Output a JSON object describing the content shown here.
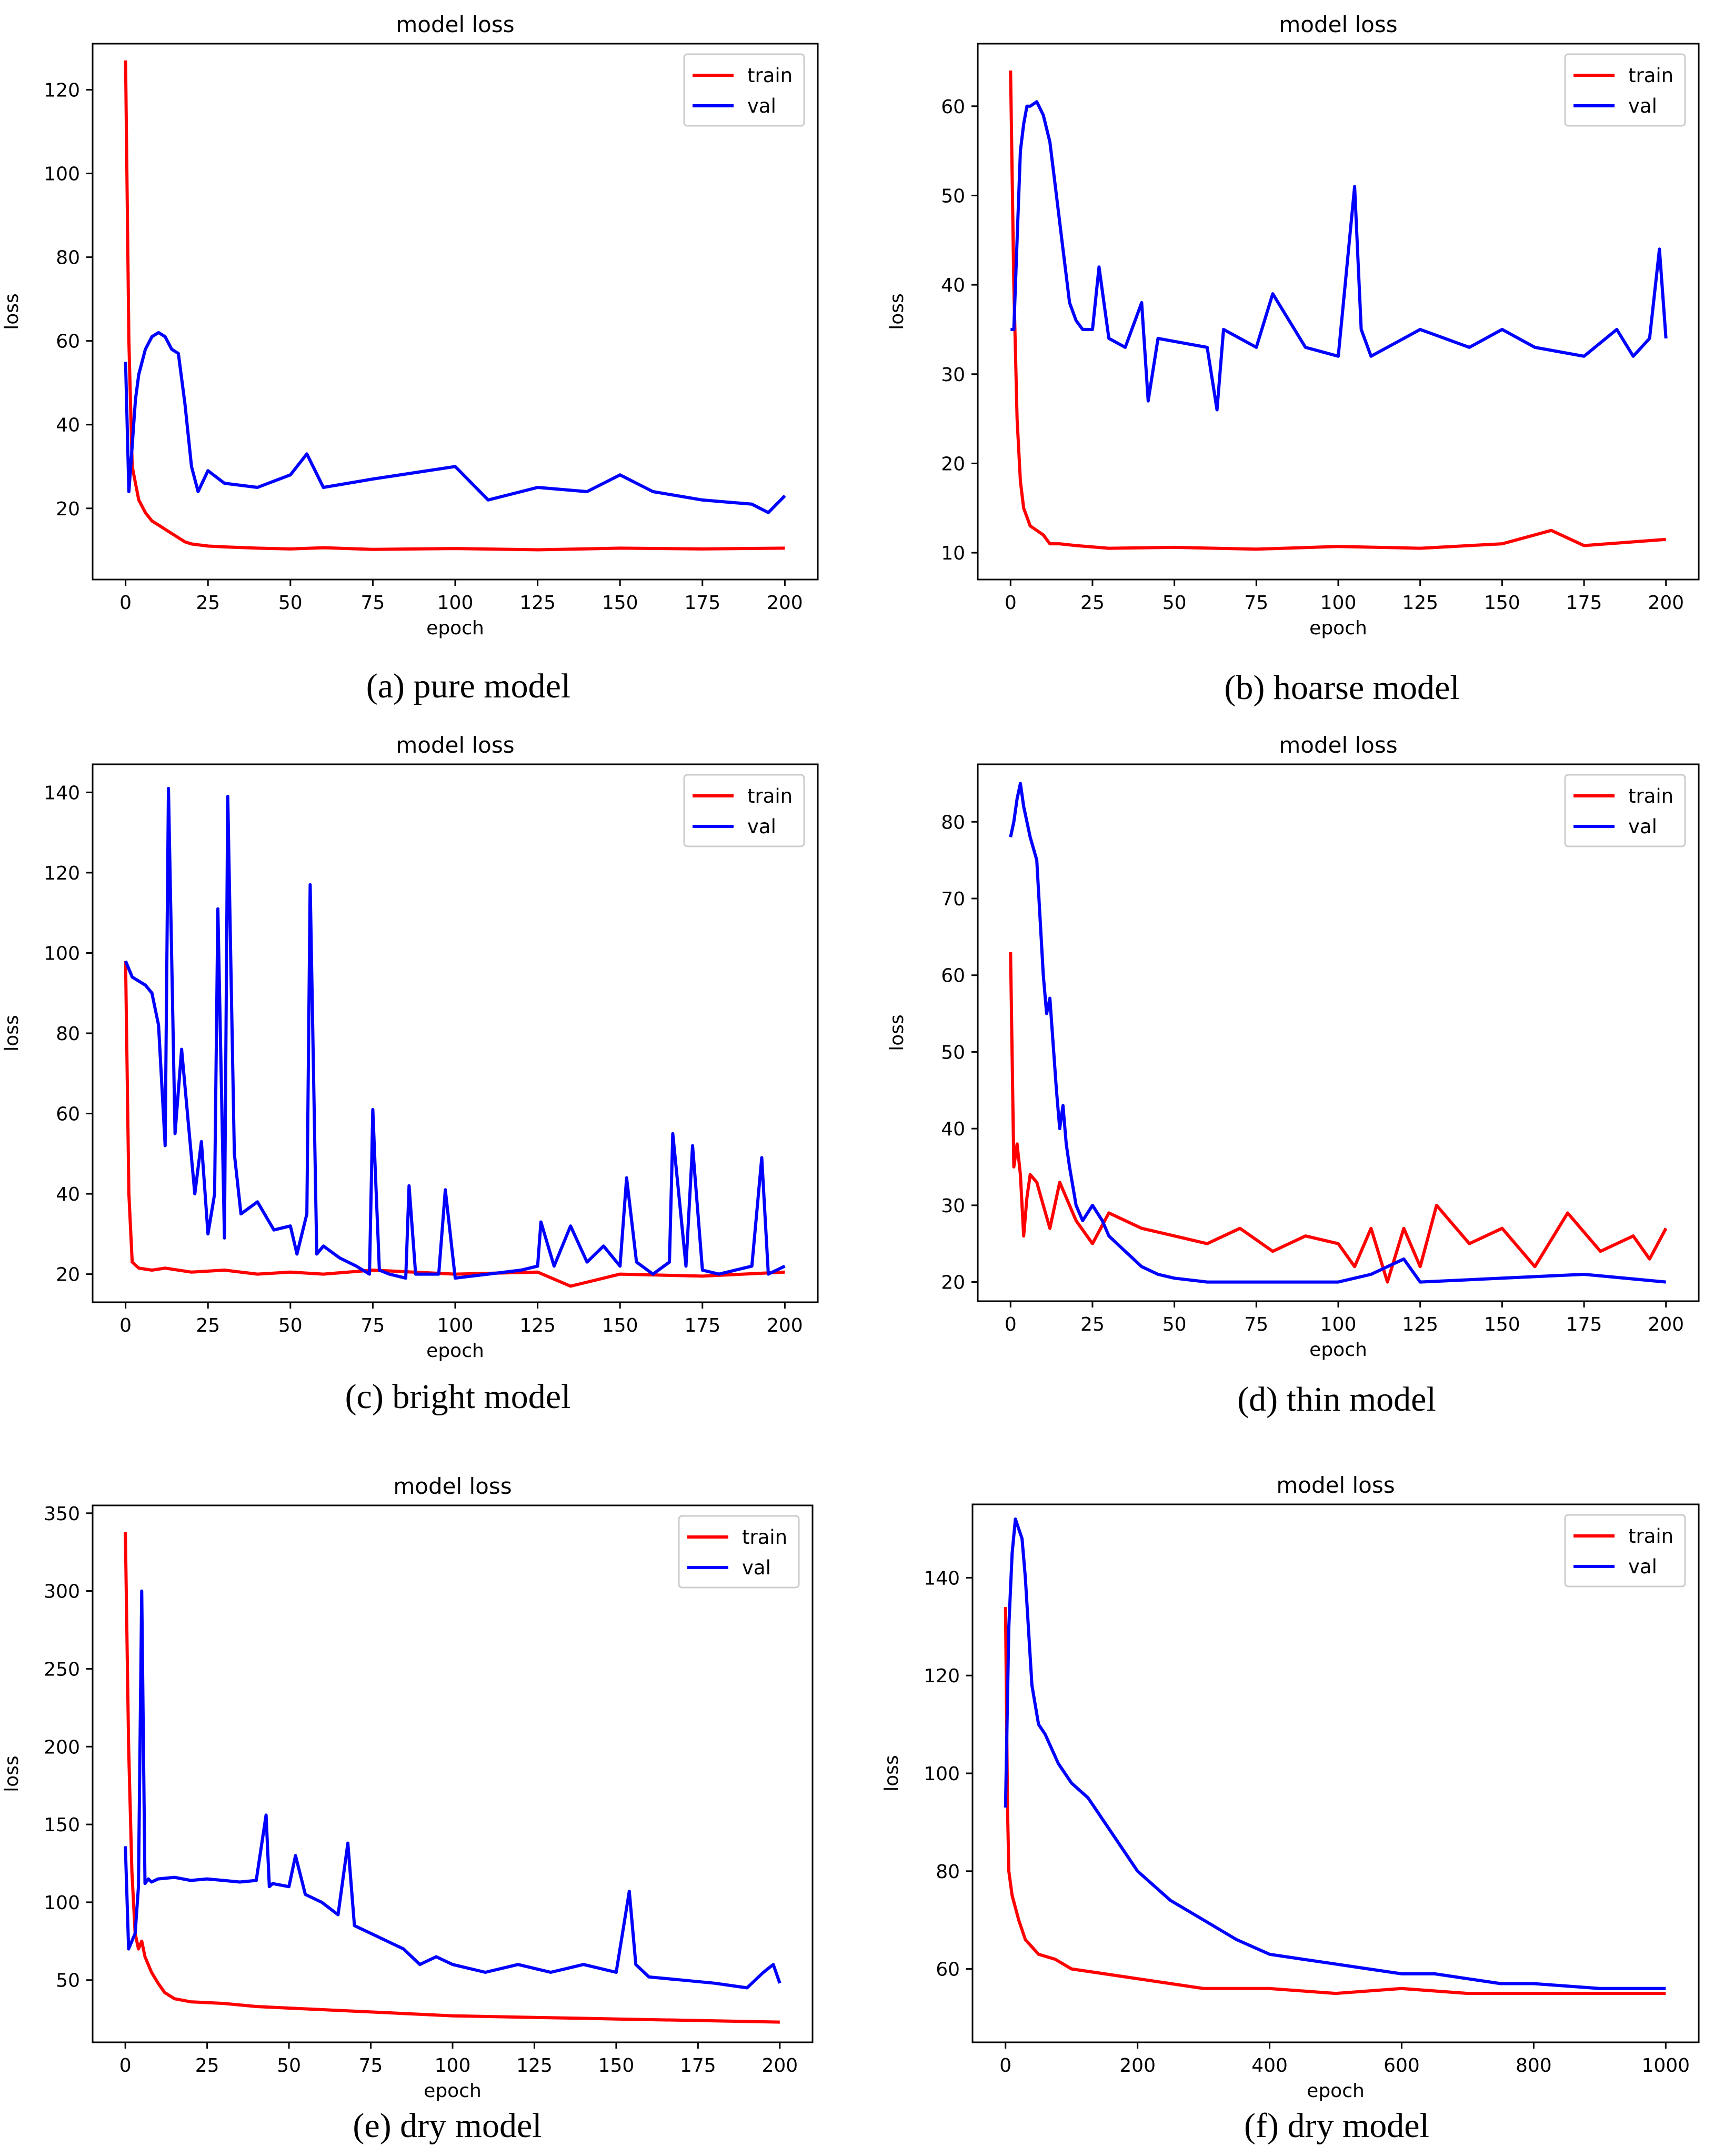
{
  "colors": {
    "train": "#ff0000",
    "val": "#0000ff"
  },
  "chart_data": [
    {
      "type": "line",
      "title": "model loss",
      "xlabel": "epoch",
      "ylabel": "loss",
      "caption": "(a)  pure model",
      "xlim": [
        -10,
        210
      ],
      "ylim": [
        3,
        131
      ],
      "xticks": [
        0,
        25,
        50,
        75,
        100,
        125,
        150,
        175,
        200
      ],
      "yticks": [
        20,
        40,
        60,
        80,
        100,
        120
      ],
      "legend": {
        "position": "top-right",
        "entries": [
          "train",
          "val"
        ]
      },
      "series": [
        {
          "name": "train",
          "x": [
            0,
            1,
            2,
            4,
            6,
            8,
            10,
            12,
            14,
            16,
            18,
            20,
            25,
            30,
            40,
            50,
            60,
            75,
            100,
            125,
            150,
            175,
            200
          ],
          "values": [
            127,
            60,
            30,
            22,
            19,
            17,
            16,
            15,
            14,
            13,
            12,
            11.5,
            11,
            10.8,
            10.5,
            10.3,
            10.6,
            10.2,
            10.4,
            10.1,
            10.5,
            10.3,
            10.5
          ]
        },
        {
          "name": "val",
          "x": [
            0,
            1,
            2,
            3,
            4,
            5,
            6,
            8,
            10,
            12,
            14,
            16,
            18,
            20,
            22,
            25,
            30,
            40,
            50,
            55,
            60,
            75,
            100,
            110,
            125,
            140,
            150,
            160,
            175,
            190,
            195,
            200
          ],
          "values": [
            55,
            24,
            35,
            46,
            52,
            55,
            58,
            61,
            62,
            61,
            58,
            57,
            45,
            30,
            24,
            29,
            26,
            25,
            28,
            33,
            25,
            27,
            30,
            22,
            25,
            24,
            28,
            24,
            22,
            21,
            19,
            23
          ]
        }
      ]
    },
    {
      "type": "line",
      "title": "model loss",
      "xlabel": "epoch",
      "ylabel": "loss",
      "caption": "(b)  hoarse model",
      "xlim": [
        -10,
        210
      ],
      "ylim": [
        7,
        67
      ],
      "xticks": [
        0,
        25,
        50,
        75,
        100,
        125,
        150,
        175,
        200
      ],
      "yticks": [
        10,
        20,
        30,
        40,
        50,
        60
      ],
      "legend": {
        "position": "top-right",
        "entries": [
          "train",
          "val"
        ]
      },
      "series": [
        {
          "name": "train",
          "x": [
            0,
            1,
            2,
            3,
            4,
            6,
            8,
            10,
            12,
            15,
            20,
            30,
            50,
            75,
            100,
            125,
            150,
            165,
            175,
            200
          ],
          "values": [
            64,
            40,
            25,
            18,
            15,
            13,
            12.5,
            12,
            11,
            11,
            10.8,
            10.5,
            10.6,
            10.4,
            10.7,
            10.5,
            11,
            12.5,
            10.8,
            11.5
          ]
        },
        {
          "name": "val",
          "x": [
            0,
            1,
            2,
            3,
            4,
            5,
            6,
            8,
            10,
            12,
            14,
            16,
            18,
            20,
            22,
            25,
            27,
            30,
            35,
            40,
            42,
            45,
            60,
            63,
            65,
            75,
            80,
            90,
            100,
            105,
            107,
            110,
            125,
            140,
            150,
            160,
            175,
            185,
            190,
            195,
            198,
            200
          ],
          "values": [
            35,
            35,
            45,
            55,
            58,
            60,
            60,
            60.5,
            59,
            56,
            50,
            44,
            38,
            36,
            35,
            35,
            42,
            34,
            33,
            38,
            27,
            34,
            33,
            26,
            35,
            33,
            39,
            33,
            32,
            51,
            35,
            32,
            35,
            33,
            35,
            33,
            32,
            35,
            32,
            34,
            44,
            34
          ]
        }
      ]
    },
    {
      "type": "line",
      "title": "model loss",
      "xlabel": "epoch",
      "ylabel": "loss",
      "caption": "(c)  bright model",
      "xlim": [
        -10,
        210
      ],
      "ylim": [
        13,
        147
      ],
      "xticks": [
        0,
        25,
        50,
        75,
        100,
        125,
        150,
        175,
        200
      ],
      "yticks": [
        20,
        40,
        60,
        80,
        100,
        120,
        140
      ],
      "legend": {
        "position": "top-right",
        "entries": [
          "train",
          "val"
        ]
      },
      "series": [
        {
          "name": "train",
          "x": [
            0,
            1,
            2,
            4,
            8,
            12,
            20,
            30,
            40,
            50,
            60,
            75,
            100,
            125,
            135,
            150,
            175,
            200
          ],
          "values": [
            98,
            40,
            23,
            21.5,
            21,
            21.5,
            20.5,
            21,
            20,
            20.5,
            20,
            21,
            20,
            20.5,
            17,
            20,
            19.5,
            20.5
          ]
        },
        {
          "name": "val",
          "x": [
            0,
            2,
            4,
            6,
            8,
            10,
            12,
            13,
            15,
            17,
            19,
            21,
            23,
            25,
            27,
            28,
            30,
            31,
            33,
            35,
            40,
            45,
            50,
            52,
            55,
            56,
            58,
            60,
            65,
            70,
            74,
            75,
            77,
            80,
            85,
            86,
            88,
            95,
            97,
            100,
            110,
            120,
            125,
            126,
            130,
            135,
            140,
            145,
            150,
            152,
            155,
            160,
            165,
            166,
            170,
            172,
            175,
            180,
            185,
            190,
            193,
            195,
            200
          ],
          "values": [
            98,
            94,
            93,
            92,
            90,
            82,
            52,
            141,
            55,
            76,
            58,
            40,
            53,
            30,
            40,
            111,
            29,
            139,
            50,
            35,
            38,
            31,
            32,
            25,
            35,
            117,
            25,
            27,
            24,
            22,
            20,
            61,
            21,
            20,
            19,
            42,
            20,
            20,
            41,
            19,
            20,
            21,
            22,
            33,
            22,
            32,
            23,
            27,
            22,
            44,
            23,
            20,
            23,
            55,
            22,
            52,
            21,
            20,
            21,
            22,
            49,
            20,
            22
          ]
        }
      ]
    },
    {
      "type": "line",
      "title": "model loss",
      "xlabel": "epoch",
      "ylabel": "loss",
      "caption": "(d)  thin model",
      "xlim": [
        -10,
        210
      ],
      "ylim": [
        17.5,
        87.5
      ],
      "xticks": [
        0,
        25,
        50,
        75,
        100,
        125,
        150,
        175,
        200
      ],
      "yticks": [
        20,
        30,
        40,
        50,
        60,
        70,
        80
      ],
      "legend": {
        "position": "top-right",
        "entries": [
          "train",
          "val"
        ]
      },
      "series": [
        {
          "name": "train",
          "x": [
            0,
            1,
            2,
            3,
            4,
            5,
            6,
            8,
            10,
            12,
            15,
            20,
            25,
            30,
            35,
            40,
            50,
            60,
            70,
            80,
            90,
            100,
            105,
            110,
            115,
            120,
            125,
            130,
            140,
            150,
            160,
            170,
            180,
            190,
            195,
            200
          ],
          "values": [
            63,
            35,
            38,
            34,
            26,
            31,
            34,
            33,
            30,
            27,
            33,
            28,
            25,
            29,
            28,
            27,
            26,
            25,
            27,
            24,
            26,
            25,
            22,
            27,
            20,
            27,
            22,
            30,
            25,
            27,
            22,
            29,
            24,
            26,
            23,
            27
          ]
        },
        {
          "name": "val",
          "x": [
            0,
            1,
            2,
            3,
            4,
            5,
            6,
            8,
            10,
            11,
            12,
            14,
            15,
            16,
            17,
            18,
            20,
            22,
            25,
            28,
            30,
            35,
            40,
            45,
            50,
            60,
            75,
            100,
            110,
            120,
            125,
            150,
            175,
            200
          ],
          "values": [
            78,
            80,
            83,
            85,
            82,
            80,
            78,
            75,
            60,
            55,
            57,
            45,
            40,
            43,
            38,
            35,
            30,
            28,
            30,
            28,
            26,
            24,
            22,
            21,
            20.5,
            20,
            20,
            20,
            21,
            23,
            20,
            20.5,
            21,
            20
          ]
        }
      ]
    },
    {
      "type": "line",
      "title": "model loss",
      "xlabel": "epoch",
      "ylabel": "loss",
      "caption": "(e)  dry model",
      "xlim": [
        -10,
        210
      ],
      "ylim": [
        10,
        355
      ],
      "xticks": [
        0,
        25,
        50,
        75,
        100,
        125,
        150,
        175,
        200
      ],
      "yticks": [
        50,
        100,
        150,
        200,
        250,
        300,
        350
      ],
      "legend": {
        "position": "top-right",
        "entries": [
          "train",
          "val"
        ]
      },
      "series": [
        {
          "name": "train",
          "x": [
            0,
            1,
            2,
            3,
            4,
            5,
            6,
            8,
            10,
            12,
            15,
            20,
            30,
            40,
            50,
            60,
            70,
            80,
            90,
            100,
            125,
            150,
            175,
            200
          ],
          "values": [
            338,
            200,
            120,
            80,
            70,
            75,
            65,
            55,
            48,
            42,
            38,
            36,
            35,
            33,
            32,
            31,
            30,
            29,
            28,
            27,
            26,
            25,
            24,
            23
          ]
        },
        {
          "name": "val",
          "x": [
            0,
            1,
            2,
            3,
            4,
            5,
            6,
            7,
            8,
            10,
            15,
            20,
            25,
            30,
            35,
            40,
            43,
            44,
            45,
            50,
            52,
            55,
            60,
            65,
            68,
            70,
            75,
            80,
            85,
            90,
            95,
            100,
            110,
            120,
            130,
            140,
            150,
            154,
            156,
            160,
            170,
            180,
            190,
            195,
            198,
            200
          ],
          "values": [
            136,
            70,
            75,
            80,
            110,
            300,
            112,
            115,
            113,
            115,
            116,
            114,
            115,
            114,
            113,
            114,
            156,
            110,
            112,
            110,
            130,
            105,
            100,
            92,
            138,
            85,
            80,
            75,
            70,
            60,
            65,
            60,
            55,
            60,
            55,
            60,
            55,
            107,
            60,
            52,
            50,
            48,
            45,
            55,
            60,
            48
          ]
        }
      ]
    },
    {
      "type": "line",
      "title": "model loss",
      "xlabel": "epoch",
      "ylabel": "loss",
      "caption": "(f)  dry model",
      "xlim": [
        -50,
        1050
      ],
      "ylim": [
        45,
        155
      ],
      "xticks": [
        0,
        200,
        400,
        600,
        800,
        1000
      ],
      "yticks": [
        60,
        80,
        100,
        120,
        140
      ],
      "legend": {
        "position": "top-right",
        "entries": [
          "train",
          "val"
        ]
      },
      "series": [
        {
          "name": "train",
          "x": [
            0,
            3,
            5,
            10,
            20,
            30,
            50,
            75,
            100,
            150,
            200,
            250,
            300,
            400,
            500,
            600,
            700,
            800,
            900,
            1000
          ],
          "values": [
            134,
            93,
            80,
            75,
            70,
            66,
            63,
            62,
            60,
            59,
            58,
            57,
            56,
            56,
            55,
            56,
            55,
            55,
            55,
            55
          ]
        },
        {
          "name": "val",
          "x": [
            0,
            5,
            10,
            15,
            20,
            25,
            30,
            40,
            50,
            60,
            80,
            100,
            125,
            150,
            175,
            200,
            250,
            300,
            350,
            400,
            450,
            500,
            550,
            600,
            650,
            700,
            750,
            800,
            900,
            1000
          ],
          "values": [
            93,
            130,
            145,
            152,
            150,
            148,
            140,
            118,
            110,
            108,
            102,
            98,
            95,
            90,
            85,
            80,
            74,
            70,
            66,
            63,
            62,
            61,
            60,
            59,
            59,
            58,
            57,
            57,
            56,
            56
          ]
        }
      ]
    }
  ]
}
